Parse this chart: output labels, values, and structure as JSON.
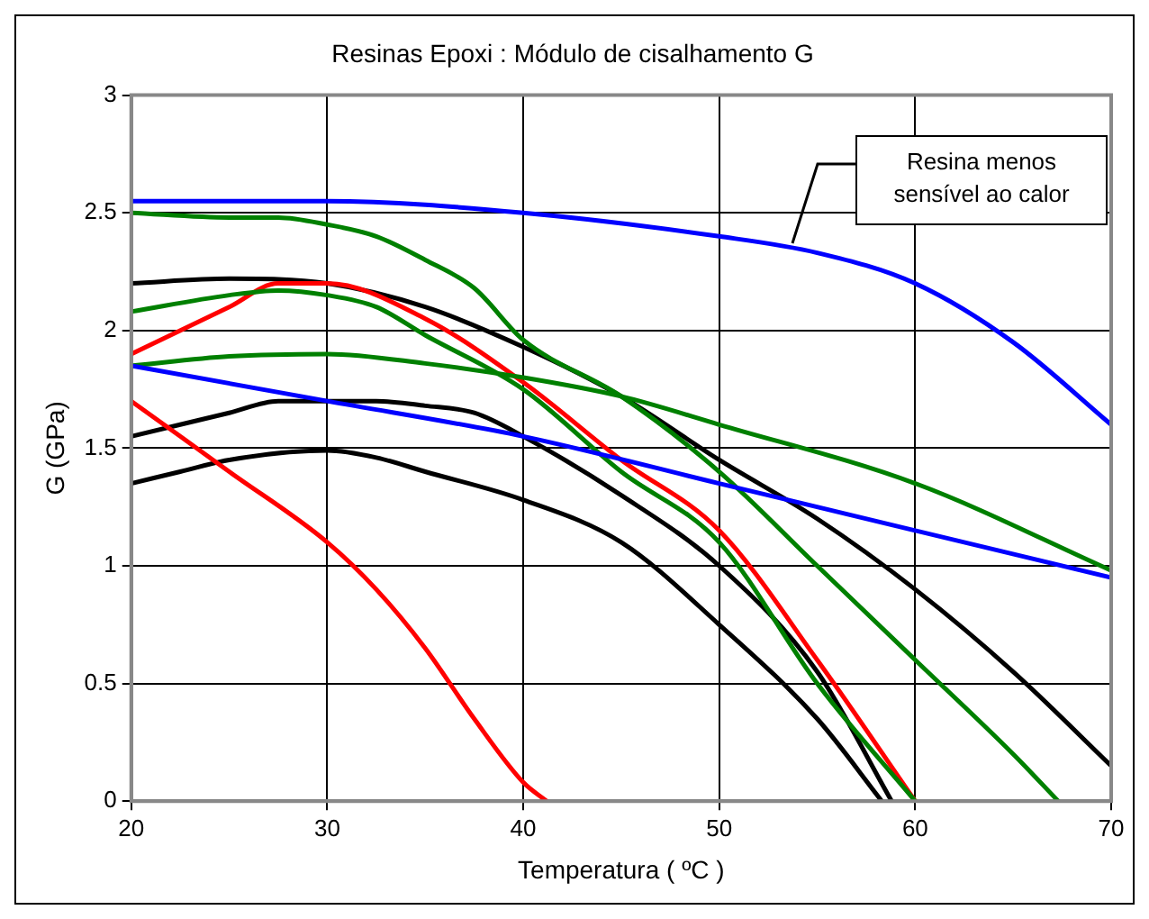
{
  "chart_data": {
    "type": "line",
    "title": "Resinas Epoxi : Módulo de cisalhamento G",
    "xlabel": "Temperatura ( ºC )",
    "ylabel": "G (GPa)",
    "xlim": [
      20,
      70
    ],
    "xticks": [
      20,
      30,
      40,
      50,
      60,
      70
    ],
    "ylim": [
      0,
      3
    ],
    "yticks": [
      0,
      0.5,
      1,
      1.5,
      2,
      2.5,
      3
    ],
    "grid": true,
    "legend": false,
    "marker": "none",
    "line_style": "solid",
    "annotations": [
      "Resina menos sensível ao calor"
    ],
    "series": [
      {
        "color": "#0000ff",
        "x": [
          20,
          30,
          40,
          50,
          55,
          60,
          65,
          70
        ],
        "values": [
          2.55,
          2.55,
          2.5,
          2.4,
          2.33,
          2.2,
          1.95,
          1.6
        ]
      },
      {
        "color": "#0000ff",
        "x": [
          20,
          30,
          40,
          50,
          60,
          70
        ],
        "values": [
          1.85,
          1.7,
          1.55,
          1.35,
          1.15,
          0.95
        ]
      },
      {
        "color": "#008000",
        "x": [
          20,
          25,
          27.5,
          30,
          32.5,
          35,
          37.5,
          40,
          45,
          50,
          55,
          60,
          65,
          67.3
        ],
        "values": [
          2.5,
          2.48,
          2.48,
          2.45,
          2.4,
          2.3,
          2.18,
          1.96,
          1.72,
          1.4,
          1.0,
          0.6,
          0.2,
          0
        ]
      },
      {
        "color": "#008000",
        "x": [
          20,
          25,
          27.5,
          30,
          32.5,
          35,
          40,
          45,
          50,
          55,
          60
        ],
        "values": [
          2.08,
          2.15,
          2.17,
          2.15,
          2.1,
          1.98,
          1.75,
          1.4,
          1.1,
          0.5,
          0
        ]
      },
      {
        "color": "#008000",
        "x": [
          20,
          25,
          30,
          35,
          40,
          45,
          50,
          60,
          70
        ],
        "values": [
          1.85,
          1.89,
          1.9,
          1.86,
          1.8,
          1.72,
          1.6,
          1.35,
          0.98
        ]
      },
      {
        "color": "#ff0000",
        "x": [
          20,
          25,
          27.5,
          30,
          35,
          40,
          45,
          50,
          55,
          60
        ],
        "values": [
          1.9,
          2.1,
          2.2,
          2.2,
          2.05,
          1.78,
          1.45,
          1.15,
          0.6,
          0
        ]
      },
      {
        "color": "#ff0000",
        "x": [
          20,
          25,
          30,
          32.5,
          35,
          37.5,
          40,
          41.2
        ],
        "values": [
          1.7,
          1.4,
          1.1,
          0.9,
          0.65,
          0.35,
          0.08,
          0
        ]
      },
      {
        "color": "#000000",
        "x": [
          20,
          25,
          30,
          35,
          40,
          45,
          50,
          55,
          60,
          65,
          70
        ],
        "values": [
          2.2,
          2.22,
          2.2,
          2.1,
          1.93,
          1.72,
          1.45,
          1.2,
          0.9,
          0.55,
          0.15
        ]
      },
      {
        "color": "#000000",
        "x": [
          20,
          25,
          27.5,
          30,
          32.5,
          35,
          37.5,
          40,
          45,
          50,
          55,
          58.8
        ],
        "values": [
          1.55,
          1.65,
          1.7,
          1.7,
          1.7,
          1.68,
          1.65,
          1.55,
          1.3,
          1.0,
          0.55,
          0
        ]
      },
      {
        "color": "#000000",
        "x": [
          20,
          22.5,
          25,
          30,
          32.5,
          35,
          40,
          45,
          50,
          55,
          58.3
        ],
        "values": [
          1.35,
          1.4,
          1.45,
          1.49,
          1.46,
          1.4,
          1.28,
          1.1,
          0.75,
          0.35,
          0
        ]
      }
    ]
  }
}
